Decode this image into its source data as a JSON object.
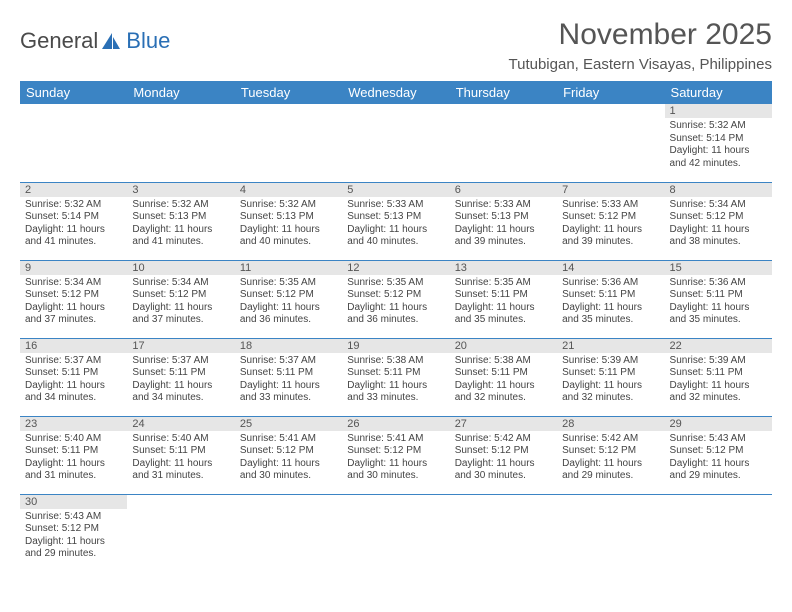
{
  "logo": {
    "text1": "General",
    "text2": "Blue"
  },
  "title": "November 2025",
  "location": "Tutubigan, Eastern Visayas, Philippines",
  "colors": {
    "header_bg": "#3b84c4",
    "header_fg": "#ffffff",
    "daynum_bg": "#e6e6e6",
    "cell_border": "#3b84c4",
    "logo_blue": "#2a6fb5"
  },
  "weekdays": [
    "Sunday",
    "Monday",
    "Tuesday",
    "Wednesday",
    "Thursday",
    "Friday",
    "Saturday"
  ],
  "weeks": [
    [
      null,
      null,
      null,
      null,
      null,
      null,
      {
        "n": "1",
        "sr": "Sunrise: 5:32 AM",
        "ss": "Sunset: 5:14 PM",
        "dl": "Daylight: 11 hours and 42 minutes."
      }
    ],
    [
      {
        "n": "2",
        "sr": "Sunrise: 5:32 AM",
        "ss": "Sunset: 5:14 PM",
        "dl": "Daylight: 11 hours and 41 minutes."
      },
      {
        "n": "3",
        "sr": "Sunrise: 5:32 AM",
        "ss": "Sunset: 5:13 PM",
        "dl": "Daylight: 11 hours and 41 minutes."
      },
      {
        "n": "4",
        "sr": "Sunrise: 5:32 AM",
        "ss": "Sunset: 5:13 PM",
        "dl": "Daylight: 11 hours and 40 minutes."
      },
      {
        "n": "5",
        "sr": "Sunrise: 5:33 AM",
        "ss": "Sunset: 5:13 PM",
        "dl": "Daylight: 11 hours and 40 minutes."
      },
      {
        "n": "6",
        "sr": "Sunrise: 5:33 AM",
        "ss": "Sunset: 5:13 PM",
        "dl": "Daylight: 11 hours and 39 minutes."
      },
      {
        "n": "7",
        "sr": "Sunrise: 5:33 AM",
        "ss": "Sunset: 5:12 PM",
        "dl": "Daylight: 11 hours and 39 minutes."
      },
      {
        "n": "8",
        "sr": "Sunrise: 5:34 AM",
        "ss": "Sunset: 5:12 PM",
        "dl": "Daylight: 11 hours and 38 minutes."
      }
    ],
    [
      {
        "n": "9",
        "sr": "Sunrise: 5:34 AM",
        "ss": "Sunset: 5:12 PM",
        "dl": "Daylight: 11 hours and 37 minutes."
      },
      {
        "n": "10",
        "sr": "Sunrise: 5:34 AM",
        "ss": "Sunset: 5:12 PM",
        "dl": "Daylight: 11 hours and 37 minutes."
      },
      {
        "n": "11",
        "sr": "Sunrise: 5:35 AM",
        "ss": "Sunset: 5:12 PM",
        "dl": "Daylight: 11 hours and 36 minutes."
      },
      {
        "n": "12",
        "sr": "Sunrise: 5:35 AM",
        "ss": "Sunset: 5:12 PM",
        "dl": "Daylight: 11 hours and 36 minutes."
      },
      {
        "n": "13",
        "sr": "Sunrise: 5:35 AM",
        "ss": "Sunset: 5:11 PM",
        "dl": "Daylight: 11 hours and 35 minutes."
      },
      {
        "n": "14",
        "sr": "Sunrise: 5:36 AM",
        "ss": "Sunset: 5:11 PM",
        "dl": "Daylight: 11 hours and 35 minutes."
      },
      {
        "n": "15",
        "sr": "Sunrise: 5:36 AM",
        "ss": "Sunset: 5:11 PM",
        "dl": "Daylight: 11 hours and 35 minutes."
      }
    ],
    [
      {
        "n": "16",
        "sr": "Sunrise: 5:37 AM",
        "ss": "Sunset: 5:11 PM",
        "dl": "Daylight: 11 hours and 34 minutes."
      },
      {
        "n": "17",
        "sr": "Sunrise: 5:37 AM",
        "ss": "Sunset: 5:11 PM",
        "dl": "Daylight: 11 hours and 34 minutes."
      },
      {
        "n": "18",
        "sr": "Sunrise: 5:37 AM",
        "ss": "Sunset: 5:11 PM",
        "dl": "Daylight: 11 hours and 33 minutes."
      },
      {
        "n": "19",
        "sr": "Sunrise: 5:38 AM",
        "ss": "Sunset: 5:11 PM",
        "dl": "Daylight: 11 hours and 33 minutes."
      },
      {
        "n": "20",
        "sr": "Sunrise: 5:38 AM",
        "ss": "Sunset: 5:11 PM",
        "dl": "Daylight: 11 hours and 32 minutes."
      },
      {
        "n": "21",
        "sr": "Sunrise: 5:39 AM",
        "ss": "Sunset: 5:11 PM",
        "dl": "Daylight: 11 hours and 32 minutes."
      },
      {
        "n": "22",
        "sr": "Sunrise: 5:39 AM",
        "ss": "Sunset: 5:11 PM",
        "dl": "Daylight: 11 hours and 32 minutes."
      }
    ],
    [
      {
        "n": "23",
        "sr": "Sunrise: 5:40 AM",
        "ss": "Sunset: 5:11 PM",
        "dl": "Daylight: 11 hours and 31 minutes."
      },
      {
        "n": "24",
        "sr": "Sunrise: 5:40 AM",
        "ss": "Sunset: 5:11 PM",
        "dl": "Daylight: 11 hours and 31 minutes."
      },
      {
        "n": "25",
        "sr": "Sunrise: 5:41 AM",
        "ss": "Sunset: 5:12 PM",
        "dl": "Daylight: 11 hours and 30 minutes."
      },
      {
        "n": "26",
        "sr": "Sunrise: 5:41 AM",
        "ss": "Sunset: 5:12 PM",
        "dl": "Daylight: 11 hours and 30 minutes."
      },
      {
        "n": "27",
        "sr": "Sunrise: 5:42 AM",
        "ss": "Sunset: 5:12 PM",
        "dl": "Daylight: 11 hours and 30 minutes."
      },
      {
        "n": "28",
        "sr": "Sunrise: 5:42 AM",
        "ss": "Sunset: 5:12 PM",
        "dl": "Daylight: 11 hours and 29 minutes."
      },
      {
        "n": "29",
        "sr": "Sunrise: 5:43 AM",
        "ss": "Sunset: 5:12 PM",
        "dl": "Daylight: 11 hours and 29 minutes."
      }
    ],
    [
      {
        "n": "30",
        "sr": "Sunrise: 5:43 AM",
        "ss": "Sunset: 5:12 PM",
        "dl": "Daylight: 11 hours and 29 minutes."
      },
      null,
      null,
      null,
      null,
      null,
      null
    ]
  ]
}
